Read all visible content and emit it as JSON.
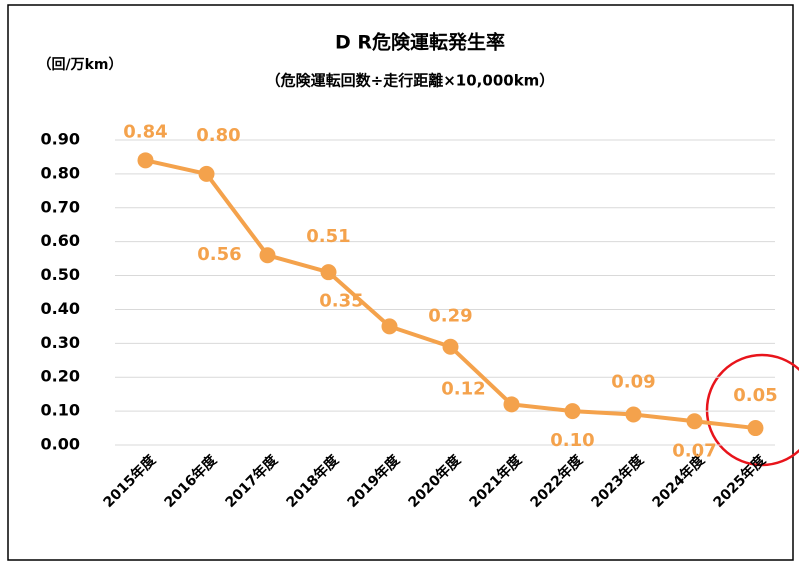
{
  "chart_data": {
    "type": "line",
    "title": "D R危険運転発生率",
    "subtitle": "（危険運転回数÷走行距離×10,000km）",
    "y_axis_label": "（回/万km）",
    "categories": [
      "2015年度",
      "2016年度",
      "2017年度",
      "2018年度",
      "2019年度",
      "2020年度",
      "2021年度",
      "2022年度",
      "2023年度",
      "2024年度",
      "2025年度"
    ],
    "series": [
      {
        "name": "DR危険運転発生率",
        "color": "#f4a24c",
        "values": [
          0.84,
          0.8,
          0.56,
          0.51,
          0.35,
          0.29,
          0.12,
          0.1,
          0.09,
          0.07,
          0.05
        ],
        "value_labels": [
          "0.84",
          "0.80",
          "0.56",
          "0.51",
          "0.35",
          "0.29",
          "0.12",
          "0.10",
          "0.09",
          "0.07",
          "0.05"
        ]
      }
    ],
    "ylim": [
      0,
      0.9
    ],
    "yticks": [
      {
        "value": 0,
        "label": "0.00"
      },
      {
        "value": 0.1,
        "label": "0.10"
      },
      {
        "value": 0.2,
        "label": "0.20"
      },
      {
        "value": 0.3,
        "label": "0.30"
      },
      {
        "value": 0.4,
        "label": "0.40"
      },
      {
        "value": 0.5,
        "label": "0.50"
      },
      {
        "value": 0.6,
        "label": "0.60"
      },
      {
        "value": 0.7,
        "label": "0.70"
      },
      {
        "value": 0.8,
        "label": "0.80"
      },
      {
        "value": 0.9,
        "label": "0.90"
      }
    ],
    "grid": true
  }
}
